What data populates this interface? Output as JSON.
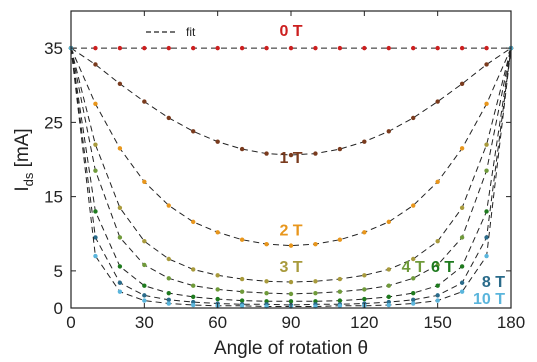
{
  "chart_data": {
    "type": "scatter",
    "title": "",
    "xlabel": "Angle of rotation θ",
    "ylabel_main": "I",
    "ylabel_sub": "ds",
    "ylabel_unit": " [mA]",
    "xlim": [
      0,
      180
    ],
    "ylim": [
      0,
      40
    ],
    "xticks": [
      0,
      30,
      60,
      90,
      120,
      150,
      180
    ],
    "xtick_labels": [
      "0",
      "30",
      "60",
      "90",
      "120",
      "150",
      "180"
    ],
    "yticks": [
      0,
      5,
      15,
      25,
      35
    ],
    "ytick_labels": [
      "0",
      "5",
      "15",
      "25",
      "35"
    ],
    "grid": false,
    "legend": {
      "placement": "top-left",
      "entries": [
        {
          "label": "fit",
          "style": "dashed",
          "color": "#222222"
        }
      ]
    },
    "x": [
      0,
      10,
      20,
      30,
      40,
      50,
      60,
      70,
      80,
      90,
      100,
      110,
      120,
      130,
      140,
      150,
      160,
      170,
      180
    ],
    "series": [
      {
        "name": "0 T",
        "color": "#cc1f1f",
        "values": [
          35,
          35,
          35,
          35,
          35,
          35,
          35,
          35,
          35,
          35,
          35,
          35,
          35,
          35,
          35,
          35,
          35,
          35,
          35
        ]
      },
      {
        "name": "1 T",
        "color": "#7a3b1e",
        "values": [
          35,
          32.8,
          30.2,
          27.8,
          25.6,
          23.8,
          22.4,
          21.4,
          20.8,
          20.6,
          20.8,
          21.4,
          22.4,
          23.8,
          25.6,
          27.8,
          30.2,
          32.8,
          35
        ]
      },
      {
        "name": "2 T",
        "color": "#e8961c",
        "values": [
          35,
          27.5,
          21.5,
          17.0,
          13.8,
          11.6,
          10.2,
          9.2,
          8.6,
          8.4,
          8.6,
          9.2,
          10.2,
          11.6,
          13.8,
          17.0,
          21.5,
          27.5,
          35
        ]
      },
      {
        "name": "3 T",
        "color": "#a89a3c",
        "values": [
          35,
          22.0,
          13.5,
          9.0,
          6.6,
          5.2,
          4.4,
          3.9,
          3.6,
          3.5,
          3.6,
          3.9,
          4.4,
          5.2,
          6.6,
          9.0,
          13.5,
          22.0,
          35
        ]
      },
      {
        "name": "4 T",
        "color": "#6f9a3a",
        "values": [
          35,
          18.5,
          9.5,
          5.8,
          4.0,
          3.0,
          2.5,
          2.2,
          2.0,
          1.9,
          2.0,
          2.2,
          2.5,
          3.0,
          4.0,
          5.8,
          9.5,
          18.5,
          35
        ]
      },
      {
        "name": "6 T",
        "color": "#1e7a1e",
        "values": [
          35,
          13.0,
          5.6,
          3.0,
          2.0,
          1.5,
          1.2,
          1.0,
          0.9,
          0.9,
          0.9,
          1.0,
          1.2,
          1.5,
          2.0,
          3.0,
          5.6,
          13.0,
          35
        ]
      },
      {
        "name": "8 T",
        "color": "#2a6b8a",
        "values": [
          35,
          9.5,
          3.4,
          1.7,
          1.1,
          0.8,
          0.6,
          0.5,
          0.5,
          0.4,
          0.5,
          0.5,
          0.6,
          0.8,
          1.1,
          1.7,
          3.4,
          9.5,
          35
        ]
      },
      {
        "name": "10 T",
        "color": "#5ab5dc",
        "values": [
          35,
          7.0,
          2.2,
          1.0,
          0.6,
          0.4,
          0.3,
          0.3,
          0.2,
          0.2,
          0.2,
          0.3,
          0.3,
          0.4,
          0.6,
          1.0,
          2.2,
          7.0,
          35
        ]
      }
    ]
  }
}
